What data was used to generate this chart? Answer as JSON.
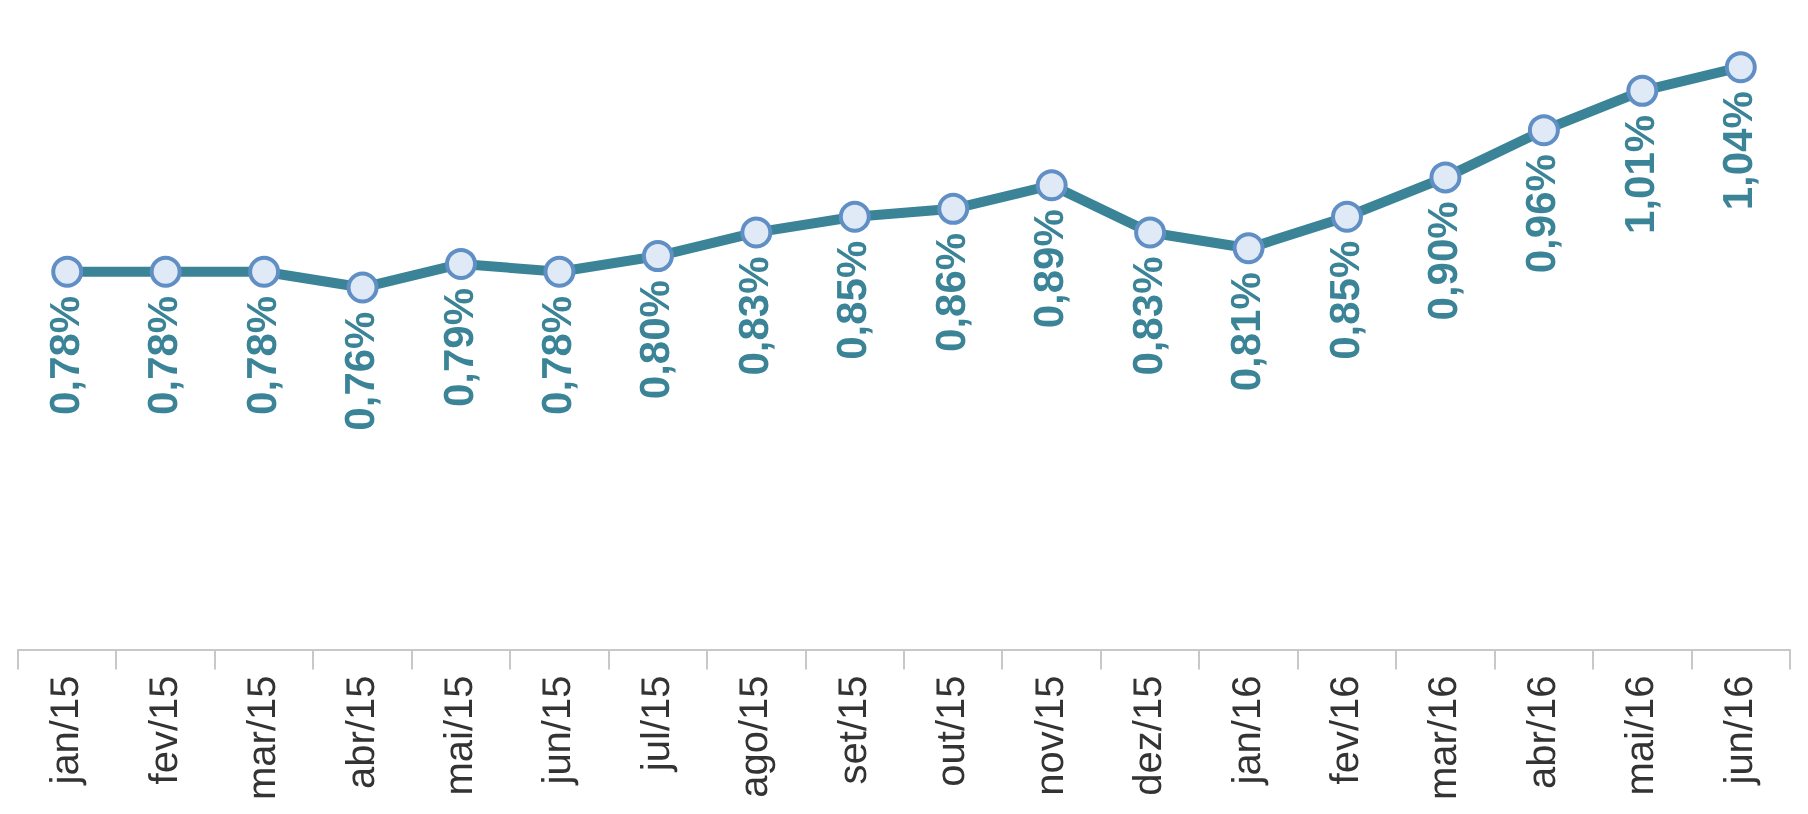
{
  "chart_data": {
    "type": "line",
    "categories": [
      "jan/15",
      "fev/15",
      "mar/15",
      "abr/15",
      "mai/15",
      "jun/15",
      "jul/15",
      "ago/15",
      "set/15",
      "out/15",
      "nov/15",
      "dez/15",
      "jan/16",
      "fev/16",
      "mar/16",
      "abr/16",
      "mai/16",
      "jun/16"
    ],
    "series": [
      {
        "color": "#3b8497",
        "values": [
          0.78,
          0.78,
          0.78,
          0.76,
          0.79,
          0.78,
          0.8,
          0.83,
          0.85,
          0.86,
          0.89,
          0.83,
          0.81,
          0.85,
          0.9,
          0.96,
          1.01,
          1.04
        ],
        "value_labels": [
          "0,78%",
          "0,78%",
          "0,78%",
          "0,76%",
          "0,79%",
          "0,78%",
          "0,80%",
          "0,83%",
          "0,85%",
          "0,86%",
          "0,89%",
          "0,83%",
          "0,81%",
          "0,85%",
          "0,90%",
          "0,96%",
          "1,01%",
          "1,04%"
        ]
      }
    ],
    "marker": "circle",
    "legend": false
  }
}
